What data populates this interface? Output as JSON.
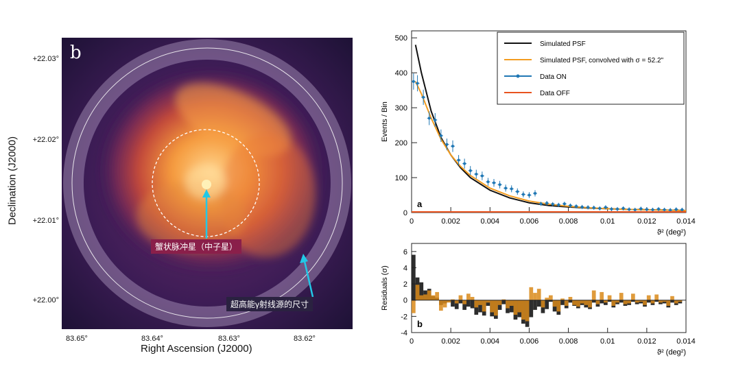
{
  "panel_b": {
    "label": "b",
    "y_axis_title": "Declination (J2000)",
    "x_axis_title": "Right Ascension (J2000)",
    "y_ticks": [
      "+22.03°",
      "+22.02°",
      "+22.01°",
      "+22.00°"
    ],
    "x_ticks": [
      "83.65°",
      "83.64°",
      "83.63°",
      "83.62°"
    ],
    "annotation_pulsar": "蟹状脉冲星（中子星）",
    "annotation_source": "超高能γ射线源的尺寸"
  },
  "chart_data": [
    {
      "type": "line",
      "panel": "a",
      "xlabel": "ϑ² (deg²)",
      "ylabel": "Events / Bin",
      "xlim": [
        0,
        0.014
      ],
      "ylim": [
        0,
        520
      ],
      "x_ticks": [
        "0",
        "0.002",
        "0.004",
        "0.006",
        "0.008",
        "0.01",
        "0.012",
        "0.014"
      ],
      "y_ticks": [
        "0",
        "100",
        "200",
        "300",
        "400",
        "500"
      ],
      "legend": [
        "Simulated PSF",
        "Simulated PSF, convolved with σ = 52.2\"",
        "Data ON",
        "Data OFF"
      ],
      "legend_position": "top-right",
      "series": [
        {
          "name": "Simulated PSF",
          "color": "#111111",
          "x": [
            0.0002,
            0.0005,
            0.001,
            0.0015,
            0.002,
            0.0025,
            0.003,
            0.004,
            0.005,
            0.006,
            0.007,
            0.008,
            0.009,
            0.01,
            0.011,
            0.012,
            0.013,
            0.014
          ],
          "y": [
            480,
            400,
            290,
            215,
            165,
            128,
            100,
            64,
            42,
            28,
            20,
            16,
            13,
            11,
            9,
            8,
            7,
            6
          ]
        },
        {
          "name": "Simulated PSF, convolved with σ = 52.2\"",
          "color": "#f39c1f",
          "x": [
            0.0002,
            0.0005,
            0.001,
            0.0015,
            0.002,
            0.0025,
            0.003,
            0.004,
            0.005,
            0.006,
            0.007,
            0.008,
            0.009,
            0.01,
            0.011,
            0.012,
            0.013,
            0.014
          ],
          "y": [
            375,
            340,
            270,
            210,
            165,
            132,
            106,
            70,
            48,
            33,
            24,
            18,
            14,
            11,
            9,
            8,
            7,
            6
          ]
        },
        {
          "name": "Data ON",
          "color": "#1f77b4",
          "errorbars": true,
          "x": [
            0.0001,
            0.0003,
            0.0006,
            0.0009,
            0.0012,
            0.0015,
            0.0018,
            0.0021,
            0.0024,
            0.0027,
            0.003,
            0.0033,
            0.0036,
            0.0039,
            0.0042,
            0.0045,
            0.0048,
            0.0051,
            0.0054,
            0.0057,
            0.006,
            0.0063,
            0.0066,
            0.0069,
            0.0072,
            0.0075,
            0.0078,
            0.0081,
            0.0084,
            0.0087,
            0.009,
            0.0093,
            0.0096,
            0.0099,
            0.0102,
            0.0105,
            0.0108,
            0.0111,
            0.0114,
            0.0117,
            0.012,
            0.0123,
            0.0126,
            0.0129,
            0.0132,
            0.0135,
            0.0138
          ],
          "y": [
            375,
            370,
            330,
            270,
            265,
            220,
            195,
            190,
            150,
            140,
            120,
            110,
            105,
            88,
            85,
            80,
            70,
            68,
            60,
            52,
            50,
            55,
            25,
            27,
            24,
            22,
            25,
            20,
            18,
            16,
            15,
            14,
            12,
            15,
            10,
            10,
            12,
            9,
            8,
            11,
            9,
            8,
            10,
            8,
            7,
            9,
            8
          ]
        },
        {
          "name": "Data OFF",
          "color": "#e8531f",
          "x": [
            0,
            0.014
          ],
          "y": [
            2,
            2
          ]
        }
      ]
    },
    {
      "type": "bar",
      "panel": "b",
      "xlabel": "ϑ² (deg²)",
      "ylabel": "Residuals (σ)",
      "xlim": [
        0,
        0.014
      ],
      "ylim": [
        -4,
        7
      ],
      "x_ticks": [
        "0",
        "0.002",
        "0.004",
        "0.006",
        "0.008",
        "0.01",
        "0.012",
        "0.014"
      ],
      "y_ticks": [
        "-4",
        "-2",
        "0",
        "2",
        "4",
        "6"
      ],
      "bin_width": 0.0002,
      "series": [
        {
          "name": "Simulated PSF",
          "color": "#222222",
          "values": [
            5.6,
            2.8,
            2.2,
            1.2,
            1.4,
            0.5,
            0.3,
            -0.6,
            -0.4,
            -0.2,
            -0.8,
            -1.1,
            -0.4,
            -1.2,
            -0.8,
            -1.0,
            -1.8,
            -1.5,
            -1.9,
            -0.7,
            -2.0,
            -2.3,
            -1.2,
            -0.5,
            -1.6,
            -1.5,
            -2.4,
            -2.1,
            -2.9,
            -3.3,
            -2.1,
            -1.2,
            -0.8,
            -1.6,
            -1.1,
            -0.2,
            -1.4,
            -1.8,
            -0.6,
            -1.0,
            -0.3,
            -0.7,
            -1.0,
            -0.6,
            -0.9,
            -1.1,
            -0.3,
            -0.8,
            -0.4,
            -0.6,
            -0.2,
            -0.9,
            -0.5,
            -0.3,
            -0.7,
            -0.6,
            -0.2,
            -0.5,
            -0.4,
            -0.8,
            -0.3,
            -0.6,
            -0.2,
            -0.5,
            -0.4,
            -0.9,
            -0.3,
            -0.6,
            -0.4
          ]
        },
        {
          "name": "Simulated PSF, convolved with σ = 52.2\"",
          "color": "#d98a1a",
          "values": [
            -1.6,
            1.9,
            0.6,
            0.7,
            1.2,
            0.6,
            1.0,
            -1.3,
            -0.9,
            -0.3,
            0.1,
            -0.4,
            0.6,
            -0.5,
            0.8,
            0.4,
            -0.9,
            -0.6,
            -1.4,
            -0.3,
            -1.5,
            -1.9,
            -0.6,
            0.1,
            -1.0,
            -0.7,
            -1.8,
            -1.5,
            -2.4,
            -2.6,
            1.6,
            0.9,
            1.4,
            -0.9,
            0.3,
            0.6,
            -0.8,
            -1.4,
            0.2,
            -0.7,
            0.4,
            -0.6,
            -0.8,
            -0.4,
            -0.6,
            -0.9,
            1.2,
            -0.5,
            1.0,
            -0.3,
            0.6,
            -0.7,
            -0.3,
            0.9,
            -0.5,
            -0.4,
            0.8,
            -0.3,
            -0.2,
            -0.6,
            0.6,
            -0.4,
            0.7,
            -0.3,
            -0.2,
            -0.7,
            0.5,
            -0.4,
            -0.2
          ]
        }
      ]
    }
  ]
}
